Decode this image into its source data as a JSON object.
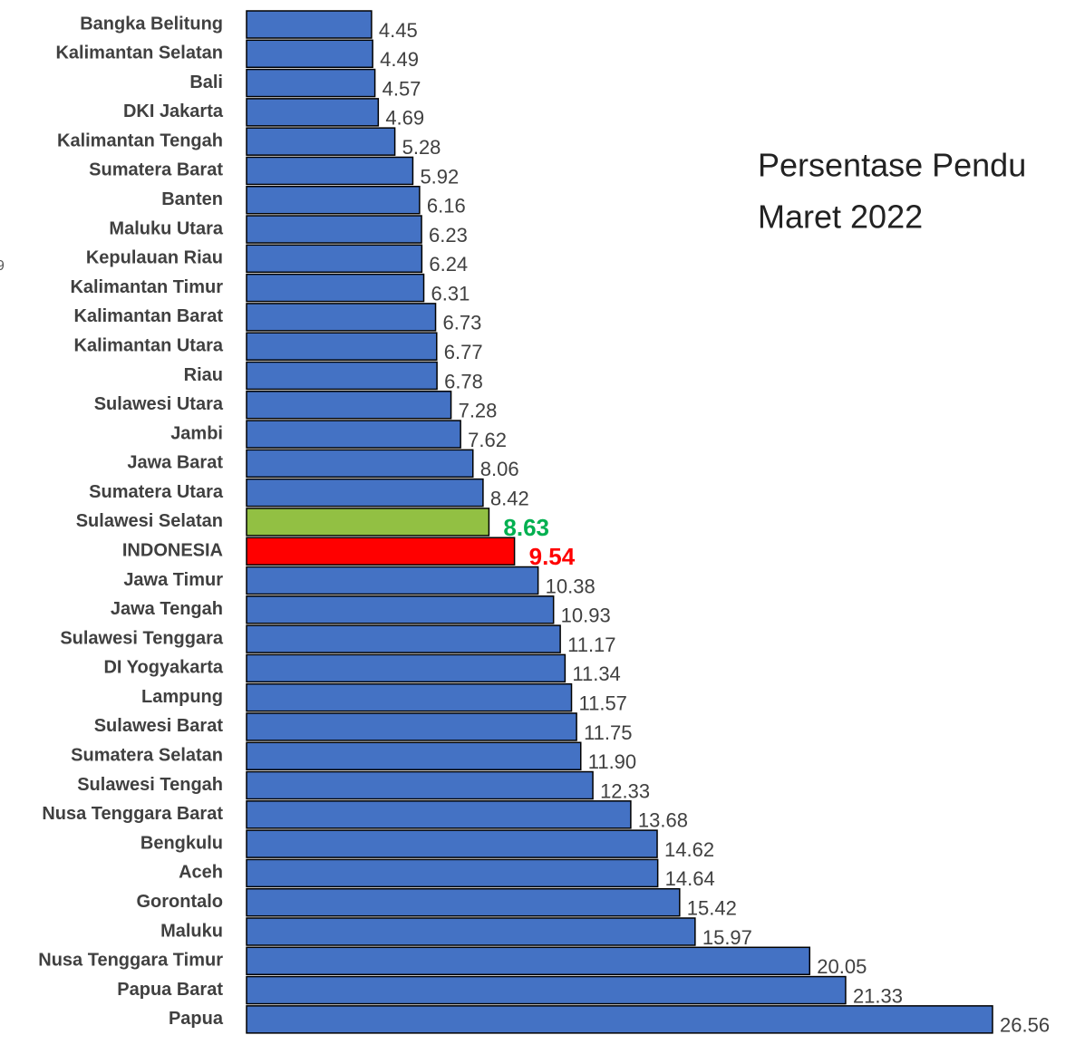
{
  "chart_data": {
    "type": "barh",
    "title_lines": [
      "Persentase Pendu",
      "Maret 2022"
    ],
    "annotation": "9",
    "categories": [
      "Bangka Belitung",
      "Kalimantan Selatan",
      "Bali",
      "DKI Jakarta",
      "Kalimantan Tengah",
      "Sumatera Barat",
      "Banten",
      "Maluku Utara",
      "Kepulauan Riau",
      "Kalimantan Timur",
      "Kalimantan Barat",
      "Kalimantan Utara",
      "Riau",
      "Sulawesi Utara",
      "Jambi",
      "Jawa Barat",
      "Sumatera Utara",
      "Sulawesi Selatan",
      "INDONESIA",
      "Jawa Timur",
      "Jawa Tengah",
      "Sulawesi Tenggara",
      "DI Yogyakarta",
      "Lampung",
      "Sulawesi Barat",
      "Sumatera Selatan",
      "Sulawesi Tengah",
      "Nusa Tenggara Barat",
      "Bengkulu",
      "Aceh",
      "Gorontalo",
      "Maluku",
      "Nusa Tenggara Timur",
      "Papua Barat",
      "Papua"
    ],
    "values": [
      4.45,
      4.49,
      4.57,
      4.69,
      5.28,
      5.92,
      6.16,
      6.23,
      6.24,
      6.31,
      6.73,
      6.77,
      6.78,
      7.28,
      7.62,
      8.06,
      8.42,
      8.63,
      9.54,
      10.38,
      10.93,
      11.17,
      11.34,
      11.57,
      11.75,
      11.9,
      12.33,
      13.68,
      14.62,
      14.64,
      15.42,
      15.97,
      20.05,
      21.33,
      26.56
    ],
    "value_labels": [
      "4.45",
      "4.49",
      "4.57",
      "4.69",
      "5.28",
      "5.92",
      "6.16",
      "6.23",
      "6.24",
      "6.31",
      "6.73",
      "6.77",
      "6.78",
      "7.28",
      "7.62",
      "8.06",
      "8.42",
      "8.63",
      "9.54",
      "10.38",
      "10.93",
      "11.17",
      "11.34",
      "11.57",
      "11.75",
      "11.90",
      "12.33",
      "13.68",
      "14.62",
      "14.64",
      "15.42",
      "15.97",
      "20.05",
      "21.33",
      "26.56"
    ],
    "colors": [
      "#4472c4",
      "#4472c4",
      "#4472c4",
      "#4472c4",
      "#4472c4",
      "#4472c4",
      "#4472c4",
      "#4472c4",
      "#4472c4",
      "#4472c4",
      "#4472c4",
      "#4472c4",
      "#4472c4",
      "#4472c4",
      "#4472c4",
      "#4472c4",
      "#4472c4",
      "#92c043",
      "#ff0000",
      "#4472c4",
      "#4472c4",
      "#4472c4",
      "#4472c4",
      "#4472c4",
      "#4472c4",
      "#4472c4",
      "#4472c4",
      "#4472c4",
      "#4472c4",
      "#4472c4",
      "#4472c4",
      "#4472c4",
      "#4472c4",
      "#4472c4",
      "#4472c4"
    ],
    "label_colors": [
      "#404040",
      "#404040",
      "#404040",
      "#404040",
      "#404040",
      "#404040",
      "#404040",
      "#404040",
      "#404040",
      "#404040",
      "#404040",
      "#404040",
      "#404040",
      "#404040",
      "#404040",
      "#404040",
      "#404040",
      "#00b050",
      "#ff0000",
      "#404040",
      "#404040",
      "#404040",
      "#404040",
      "#404040",
      "#404040",
      "#404040",
      "#404040",
      "#404040",
      "#404040",
      "#404040",
      "#404040",
      "#404040",
      "#404040",
      "#404040",
      "#404040"
    ]
  }
}
